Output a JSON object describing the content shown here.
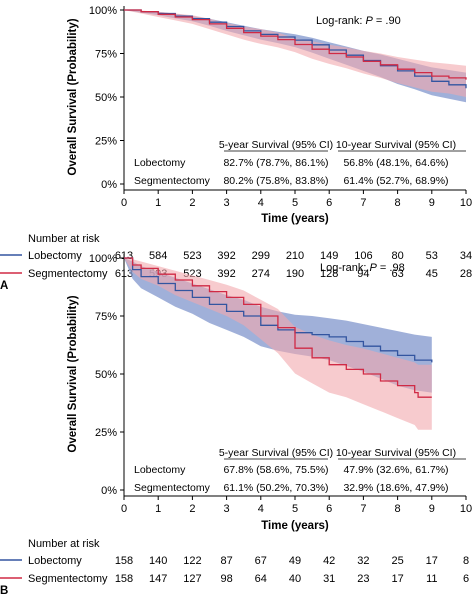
{
  "chart_data": [
    {
      "type": "line",
      "panel_label": "A",
      "annotation": {
        "prefix": "Log-rank: ",
        "p_label": "P",
        "p_value": " = .90"
      },
      "xlabel": "Time (years)",
      "ylabel": "Overall Survival (Probability)",
      "xlim": [
        0,
        10
      ],
      "ylim": [
        0,
        1
      ],
      "x_ticks": [
        "0",
        "1",
        "2",
        "3",
        "4",
        "5",
        "6",
        "7",
        "8",
        "9",
        "10"
      ],
      "y_ticks": [
        "0%",
        "25%",
        "50%",
        "75%",
        "100%"
      ],
      "series": [
        {
          "name": "Lobectomy",
          "color": "#3355a0",
          "band_color": "#8096cc",
          "x": [
            0,
            0.5,
            1,
            1.5,
            2,
            2.5,
            3,
            3.5,
            4,
            4.5,
            5,
            5.5,
            6,
            6.5,
            7,
            7.5,
            8,
            8.5,
            9,
            9.5,
            10
          ],
          "y": [
            1,
            0.99,
            0.98,
            0.965,
            0.95,
            0.93,
            0.905,
            0.88,
            0.86,
            0.845,
            0.827,
            0.8,
            0.77,
            0.74,
            0.71,
            0.68,
            0.65,
            0.62,
            0.59,
            0.57,
            0.55
          ],
          "lower": [
            1,
            0.985,
            0.97,
            0.952,
            0.935,
            0.91,
            0.88,
            0.855,
            0.83,
            0.81,
            0.787,
            0.755,
            0.72,
            0.685,
            0.65,
            0.615,
            0.575,
            0.545,
            0.51,
            0.49,
            0.47
          ],
          "upper": [
            1,
            0.995,
            0.99,
            0.978,
            0.965,
            0.95,
            0.93,
            0.91,
            0.89,
            0.875,
            0.861,
            0.84,
            0.815,
            0.79,
            0.765,
            0.745,
            0.72,
            0.695,
            0.67,
            0.655,
            0.64
          ]
        },
        {
          "name": "Segmentectomy",
          "color": "#d02a45",
          "band_color": "#f2a8ad",
          "x": [
            0,
            0.5,
            1,
            1.5,
            2,
            2.5,
            3,
            3.5,
            4,
            4.5,
            5,
            5.5,
            6,
            6.5,
            7,
            7.5,
            8,
            8.5,
            9,
            9.5,
            10
          ],
          "y": [
            1,
            0.99,
            0.975,
            0.96,
            0.945,
            0.92,
            0.895,
            0.87,
            0.85,
            0.83,
            0.802,
            0.775,
            0.75,
            0.73,
            0.705,
            0.685,
            0.66,
            0.64,
            0.62,
            0.61,
            0.6
          ],
          "lower": [
            1,
            0.98,
            0.96,
            0.94,
            0.92,
            0.89,
            0.86,
            0.83,
            0.805,
            0.785,
            0.758,
            0.72,
            0.69,
            0.665,
            0.635,
            0.61,
            0.58,
            0.555,
            0.53,
            0.52,
            0.5
          ],
          "upper": [
            1,
            0.997,
            0.99,
            0.98,
            0.97,
            0.95,
            0.925,
            0.905,
            0.89,
            0.87,
            0.838,
            0.82,
            0.8,
            0.785,
            0.765,
            0.75,
            0.73,
            0.715,
            0.7,
            0.69,
            0.68
          ]
        }
      ],
      "survival_table": {
        "headers": [
          "5-year Survival (95% CI)",
          "10-year Survival (95% CI)"
        ],
        "rows": [
          {
            "label": "Lobectomy",
            "five_year": "82.7% (78.7%, 86.1%)",
            "ten_year": "56.8% (48.1%, 64.6%)"
          },
          {
            "label": "Segmentectomy",
            "five_year": "80.2% (75.8%, 83.8%)",
            "ten_year": "61.4% (52.7%, 68.9%)"
          }
        ]
      },
      "risk_table": {
        "title": "Number at risk",
        "rows": [
          {
            "label": "Lobectomy",
            "color": "#3355a0",
            "values": [
              "613",
              "584",
              "523",
              "392",
              "299",
              "210",
              "149",
              "106",
              "80",
              "53",
              "34"
            ]
          },
          {
            "label": "Segmentectomy",
            "color": "#d02a45",
            "values": [
              "613",
              "593",
              "523",
              "392",
              "274",
              "190",
              "128",
              "94",
              "63",
              "45",
              "28"
            ]
          }
        ]
      }
    },
    {
      "type": "line",
      "panel_label": "B",
      "annotation": {
        "prefix": "Log-rank: ",
        "p_label": "P",
        "p_value": " = .98"
      },
      "xlabel": "Time (years)",
      "ylabel": "Overall Survival (Probability)",
      "xlim": [
        0,
        10
      ],
      "ylim": [
        0,
        1
      ],
      "x_ticks": [
        "0",
        "1",
        "2",
        "3",
        "4",
        "5",
        "6",
        "7",
        "8",
        "9",
        "10"
      ],
      "y_ticks": [
        "0%",
        "25%",
        "50%",
        "75%",
        "100%"
      ],
      "series": [
        {
          "name": "Lobectomy",
          "color": "#3355a0",
          "band_color": "#8096cc",
          "x": [
            0,
            0.25,
            0.5,
            1,
            1.5,
            2,
            2.5,
            3,
            3.5,
            4,
            4.5,
            5,
            5.5,
            6,
            6.5,
            7,
            7.5,
            8,
            8.5,
            9
          ],
          "y": [
            1,
            0.95,
            0.92,
            0.89,
            0.86,
            0.83,
            0.8,
            0.77,
            0.75,
            0.71,
            0.69,
            0.678,
            0.67,
            0.66,
            0.64,
            0.62,
            0.6,
            0.58,
            0.56,
            0.55
          ],
          "lower": [
            1,
            0.91,
            0.87,
            0.83,
            0.79,
            0.76,
            0.72,
            0.69,
            0.66,
            0.62,
            0.6,
            0.586,
            0.575,
            0.56,
            0.535,
            0.51,
            0.48,
            0.45,
            0.43,
            0.42
          ],
          "upper": [
            1,
            0.985,
            0.965,
            0.94,
            0.915,
            0.89,
            0.865,
            0.84,
            0.82,
            0.79,
            0.77,
            0.755,
            0.75,
            0.74,
            0.73,
            0.715,
            0.7,
            0.685,
            0.67,
            0.66
          ]
        },
        {
          "name": "Segmentectomy",
          "color": "#d02a45",
          "band_color": "#f2a8ad",
          "x": [
            0,
            0.25,
            0.5,
            1,
            1.5,
            2,
            2.5,
            3,
            3.5,
            4,
            4.5,
            5,
            5.5,
            6,
            6.5,
            7,
            7.5,
            8,
            8.5,
            8.6,
            9
          ],
          "y": [
            1,
            0.97,
            0.955,
            0.93,
            0.905,
            0.88,
            0.855,
            0.83,
            0.8,
            0.75,
            0.7,
            0.611,
            0.57,
            0.54,
            0.52,
            0.5,
            0.47,
            0.45,
            0.42,
            0.4,
            0.4
          ],
          "lower": [
            1,
            0.94,
            0.91,
            0.88,
            0.84,
            0.81,
            0.78,
            0.75,
            0.71,
            0.65,
            0.59,
            0.502,
            0.46,
            0.42,
            0.4,
            0.37,
            0.34,
            0.31,
            0.28,
            0.26,
            0.26
          ],
          "upper": [
            1,
            0.995,
            0.985,
            0.965,
            0.945,
            0.925,
            0.905,
            0.885,
            0.86,
            0.82,
            0.78,
            0.703,
            0.67,
            0.645,
            0.625,
            0.61,
            0.59,
            0.57,
            0.55,
            0.54,
            0.54
          ]
        }
      ],
      "survival_table": {
        "headers": [
          "5-year Survival (95% CI)",
          "10-year Survival (95% CI)"
        ],
        "rows": [
          {
            "label": "Lobectomy",
            "five_year": "67.8% (58.6%, 75.5%)",
            "ten_year": "47.9% (32.6%, 61.7%)"
          },
          {
            "label": "Segmentectomy",
            "five_year": "61.1% (50.2%, 70.3%)",
            "ten_year": "32.9% (18.6%, 47.9%)"
          }
        ]
      },
      "risk_table": {
        "title": "Number at risk",
        "rows": [
          {
            "label": "Lobectomy",
            "color": "#3355a0",
            "values": [
              "158",
              "140",
              "122",
              "87",
              "67",
              "49",
              "42",
              "32",
              "25",
              "17",
              "8"
            ]
          },
          {
            "label": "Segmentectomy",
            "color": "#d02a45",
            "values": [
              "158",
              "147",
              "127",
              "98",
              "64",
              "40",
              "31",
              "23",
              "17",
              "11",
              "6"
            ]
          }
        ]
      }
    }
  ]
}
